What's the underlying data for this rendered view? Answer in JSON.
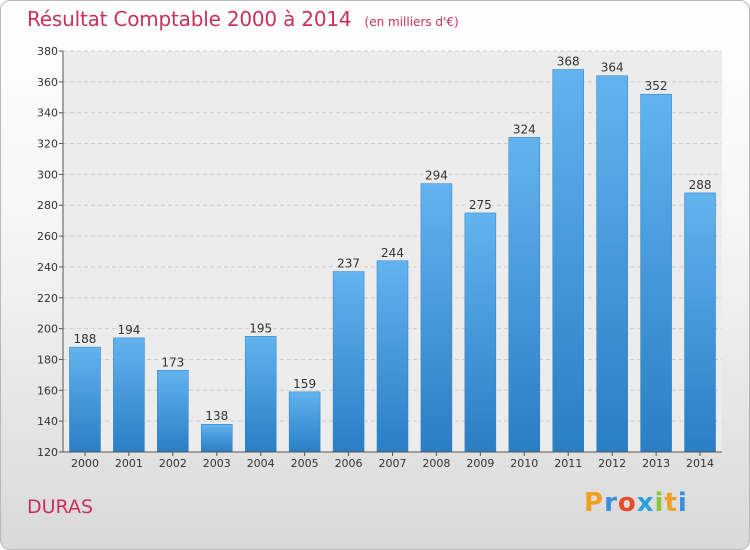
{
  "title": "Résultat Comptable 2000 à 2014",
  "subtitle": "(en milliers d'€)",
  "town": "DURAS",
  "logo": {
    "text": "Proxiti",
    "letters": [
      "P",
      "r",
      "o",
      "x",
      "i",
      "t",
      "i"
    ],
    "colors": [
      "#f0a020",
      "#3a8fd8",
      "#e84d2a",
      "#2a9fd8",
      "#8cc63f",
      "#f0a020",
      "#3a8fd8"
    ]
  },
  "colors": {
    "accent": "#c8325a",
    "bar_light": "#5fb0ea",
    "bar_dark": "#2a7ec4"
  },
  "chart_data": {
    "type": "bar",
    "title": "Résultat Comptable 2000 à 2014",
    "subtitle": "(en milliers d'€)",
    "categories": [
      "2000",
      "2001",
      "2002",
      "2003",
      "2004",
      "2005",
      "2006",
      "2007",
      "2008",
      "2009",
      "2010",
      "2011",
      "2012",
      "2013",
      "2014"
    ],
    "values": [
      188,
      194,
      173,
      138,
      195,
      159,
      237,
      244,
      294,
      275,
      324,
      368,
      364,
      352,
      288
    ],
    "ylim": [
      120,
      380
    ],
    "yticks": [
      120,
      140,
      160,
      180,
      200,
      220,
      240,
      260,
      280,
      300,
      320,
      340,
      360,
      380
    ],
    "grid": true,
    "xlabel": "",
    "ylabel": ""
  }
}
